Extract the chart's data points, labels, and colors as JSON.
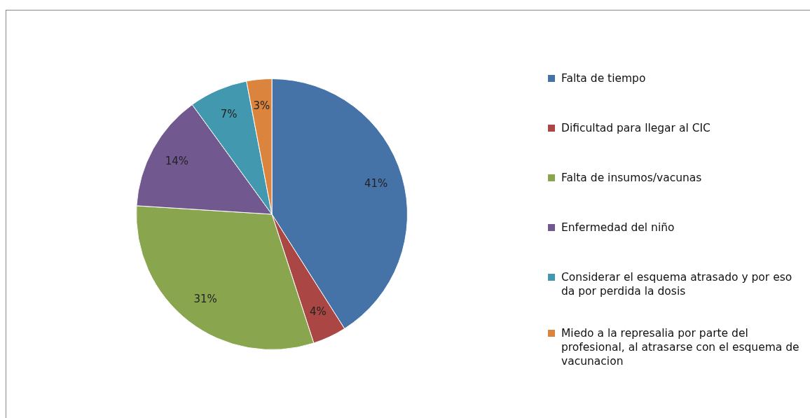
{
  "chart_data": {
    "type": "pie",
    "categories": [
      "Falta de tiempo",
      "Dificultad para llegar al CIC",
      "Falta de insumos/vacunas",
      "Enfermedad del niño",
      "Considerar el esquema atrasado y por eso da por perdida la dosis",
      "Miedo a la represalia por parte del profesional, al atrasarse con el esquema de vacunacion"
    ],
    "values": [
      41,
      4,
      31,
      14,
      7,
      3
    ],
    "value_labels": [
      "41%",
      "4%",
      "31%",
      "14%",
      "7%",
      "3%"
    ],
    "colors": [
      "#4572a7",
      "#aa4643",
      "#89a54e",
      "#71588f",
      "#4198af",
      "#db843d"
    ],
    "legend": "right"
  }
}
